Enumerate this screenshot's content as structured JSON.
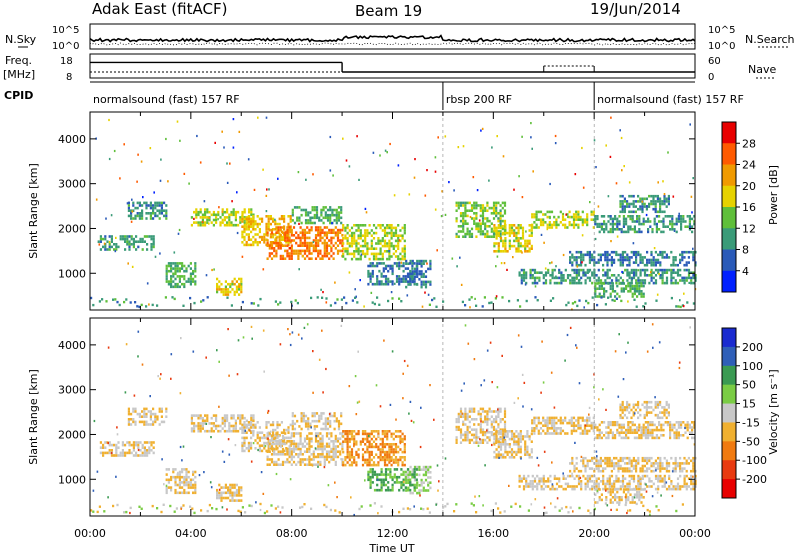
{
  "header": {
    "radar": "Adak East (fitACF)",
    "beam": "Beam 19",
    "date": "19/Jun/2014"
  },
  "noise_panel": {
    "left_label": "N.Sky",
    "right_label": "N.Search",
    "left_ticks": [
      "10^5",
      "10^0"
    ],
    "right_ticks": [
      "10^5",
      "10^0"
    ]
  },
  "freq_panel": {
    "left_label_top": "Freq.",
    "left_label_bottom": "[MHz]",
    "right_label": "Nave",
    "left_ticks": [
      "18",
      "8"
    ],
    "right_ticks": [
      "60",
      "0"
    ],
    "freq_segments": [
      {
        "start": 0.0,
        "end": 10.0,
        "value": 14.5
      },
      {
        "start": 10.0,
        "end": 24.0,
        "value": 10.5
      }
    ],
    "nave_segments": [
      {
        "start": 0.0,
        "end": 10.0,
        "value": 15
      },
      {
        "start": 14.0,
        "end": 18.0,
        "value": 15
      },
      {
        "start": 18.0,
        "end": 20.0,
        "value": 30
      },
      {
        "start": 20.0,
        "end": 24.0,
        "value": 15
      }
    ]
  },
  "cpid": {
    "label": "CPID",
    "segments": [
      {
        "start": 0.0,
        "end": 14.0,
        "name": "normalsound (fast) 157 RF"
      },
      {
        "start": 14.0,
        "end": 20.0,
        "name": "rbsp 200 RF"
      },
      {
        "start": 20.0,
        "end": 24.0,
        "name": "normalsound (fast) 157 RF"
      }
    ]
  },
  "power_panel": {
    "ylabel": "Slant Range [km]",
    "cbar_label": "Power [dB]",
    "cbar_ticks": [
      "28",
      "24",
      "20",
      "16",
      "12",
      "8",
      "4"
    ],
    "cbar_colors": [
      "#e80000",
      "#ff5a00",
      "#f09a00",
      "#e6d200",
      "#5fbf3a",
      "#3a9b78",
      "#2a5ab8",
      "#0020ff"
    ]
  },
  "velocity_panel": {
    "ylabel": "Slant Range [km]",
    "cbar_label": "Velocity [m s⁻¹]",
    "cbar_ticks": [
      "200",
      "100",
      "50",
      "15",
      "-15",
      "-50",
      "-100",
      "-200"
    ],
    "cbar_colors": [
      "#1a2bd0",
      "#2f5fb8",
      "#3a9a52",
      "#7acc44",
      "#c8c8c8",
      "#f0b030",
      "#f07a10",
      "#e83a10",
      "#e80000"
    ]
  },
  "x_axis": {
    "label": "Time UT",
    "ticks": [
      "00:00",
      "04:00",
      "08:00",
      "12:00",
      "16:00",
      "20:00",
      "00:00"
    ]
  },
  "chart_data": {
    "type": "heatmap",
    "title": "Adak East (fitACF) Beam 19 19/Jun/2014",
    "xlabel": "Time UT",
    "ylabel": "Slant Range [km]",
    "xlim": [
      0,
      24
    ],
    "ylim": [
      180,
      4600
    ],
    "y_ticks": [
      1000,
      2000,
      3000,
      4000
    ],
    "x_ticks": [
      "00:00",
      "04:00",
      "08:00",
      "12:00",
      "16:00",
      "20:00",
      "00:00"
    ],
    "panels": [
      "Power [dB]",
      "Velocity [m s⁻¹]"
    ],
    "echo_regions": [
      {
        "t0": 0.3,
        "t1": 2.5,
        "r0": 1550,
        "r1": 1850,
        "power": 8,
        "vel": -15
      },
      {
        "t0": 1.5,
        "t1": 3.0,
        "r0": 2200,
        "r1": 2600,
        "power": 8,
        "vel": -15
      },
      {
        "t0": 3.0,
        "t1": 4.2,
        "r0": 700,
        "r1": 1250,
        "power": 10,
        "vel": -15
      },
      {
        "t0": 4.0,
        "t1": 6.5,
        "r0": 2050,
        "r1": 2450,
        "power": 14,
        "vel": -15
      },
      {
        "t0": 5.0,
        "t1": 6.0,
        "r0": 500,
        "r1": 900,
        "power": 16,
        "vel": -15
      },
      {
        "t0": 6.0,
        "t1": 8.0,
        "r0": 1650,
        "r1": 2300,
        "power": 18,
        "vel": -15
      },
      {
        "t0": 7.0,
        "t1": 10.0,
        "r0": 1350,
        "r1": 2050,
        "power": 22,
        "vel": -15
      },
      {
        "t0": 8.0,
        "t1": 10.0,
        "r0": 2100,
        "r1": 2500,
        "power": 10,
        "vel": -15
      },
      {
        "t0": 10.0,
        "t1": 12.5,
        "r0": 1300,
        "r1": 2100,
        "power": 14,
        "vel": -50
      },
      {
        "t0": 12.5,
        "t1": 13.5,
        "r0": 700,
        "r1": 1300,
        "power": 6,
        "vel": 15
      },
      {
        "t0": 11.0,
        "t1": 13.0,
        "r0": 750,
        "r1": 1250,
        "power": 6,
        "vel": 50
      },
      {
        "t0": 14.5,
        "t1": 16.5,
        "r0": 1800,
        "r1": 2600,
        "power": 12,
        "vel": -15
      },
      {
        "t0": 16.0,
        "t1": 17.5,
        "r0": 1500,
        "r1": 2100,
        "power": 16,
        "vel": -15
      },
      {
        "t0": 17.5,
        "t1": 20.0,
        "r0": 2000,
        "r1": 2400,
        "power": 14,
        "vel": -15
      },
      {
        "t0": 20.0,
        "t1": 24.0,
        "r0": 1950,
        "r1": 2300,
        "power": 8,
        "vel": -15
      },
      {
        "t0": 21.0,
        "t1": 23.0,
        "r0": 2400,
        "r1": 2750,
        "power": 8,
        "vel": -15
      },
      {
        "t0": 17.0,
        "t1": 24.0,
        "r0": 800,
        "r1": 1100,
        "power": 8,
        "vel": -15
      },
      {
        "t0": 19.0,
        "t1": 24.0,
        "r0": 1200,
        "r1": 1500,
        "power": 6,
        "vel": -15
      },
      {
        "t0": 20.0,
        "t1": 22.0,
        "r0": 500,
        "r1": 800,
        "power": 10,
        "vel": -15
      }
    ]
  }
}
